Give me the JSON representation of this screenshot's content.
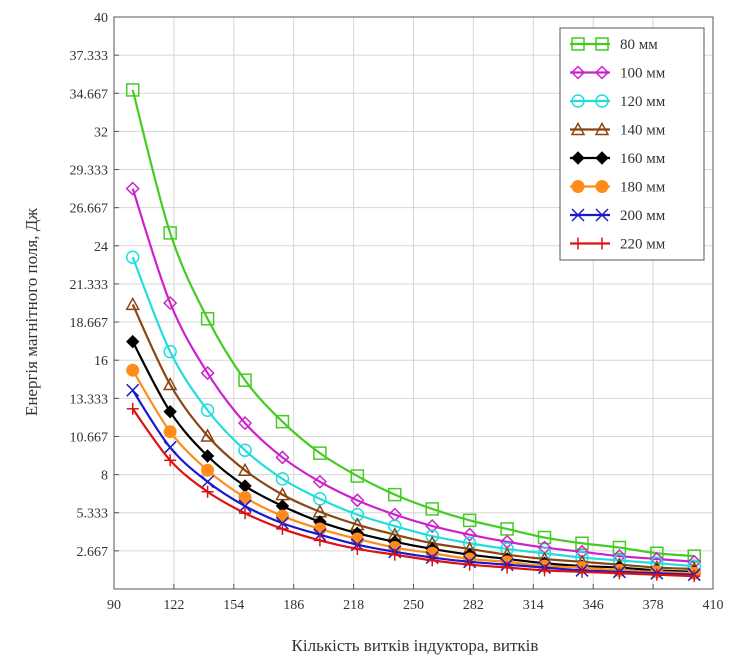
{
  "chart_data": {
    "type": "line",
    "xlabel": "Кількість витків індуктора, витків",
    "ylabel": "Енергія магнітного поля, Дж",
    "xlim": [
      90,
      410
    ],
    "ylim": [
      0,
      40
    ],
    "grid": true,
    "legend_position": "top-right",
    "x_ticks": [
      90,
      122,
      154,
      186,
      218,
      250,
      282,
      314,
      346,
      378,
      410
    ],
    "x_tick_labels": [
      "90",
      "122",
      "154",
      "186",
      "218",
      "250",
      "282",
      "314",
      "346",
      "378",
      "410"
    ],
    "y_ticks": [
      2.667,
      5.333,
      8,
      10.667,
      13.333,
      16,
      18.667,
      21.333,
      24,
      26.667,
      29.333,
      32,
      34.667,
      37.333,
      40
    ],
    "y_tick_labels": [
      "2.667",
      "5.333",
      "8",
      "10.667",
      "13.333",
      "16",
      "18.667",
      "21.333",
      "24",
      "26.667",
      "29.333",
      "32",
      "34.667",
      "37.333",
      "40"
    ],
    "x": [
      100,
      120,
      140,
      160,
      180,
      200,
      220,
      240,
      260,
      280,
      300,
      320,
      340,
      360,
      380,
      400
    ],
    "series": [
      {
        "name": "80 мм",
        "color": "#44cc22",
        "marker": "square",
        "values": [
          34.9,
          24.9,
          18.9,
          14.6,
          11.7,
          9.5,
          7.9,
          6.6,
          5.6,
          4.8,
          4.2,
          3.6,
          3.2,
          2.9,
          2.5,
          2.3
        ]
      },
      {
        "name": "100 мм",
        "color": "#cc22cc",
        "marker": "diamond",
        "values": [
          28.0,
          20.0,
          15.1,
          11.6,
          9.2,
          7.5,
          6.2,
          5.2,
          4.4,
          3.8,
          3.3,
          2.9,
          2.6,
          2.3,
          2.1,
          1.9
        ]
      },
      {
        "name": "120 мм",
        "color": "#22dddd",
        "marker": "circle",
        "values": [
          23.2,
          16.6,
          12.5,
          9.7,
          7.7,
          6.3,
          5.2,
          4.4,
          3.7,
          3.2,
          2.8,
          2.5,
          2.2,
          2.0,
          1.8,
          1.6
        ]
      },
      {
        "name": "140 мм",
        "color": "#8b4513",
        "marker": "triangle",
        "values": [
          19.9,
          14.3,
          10.7,
          8.3,
          6.6,
          5.4,
          4.5,
          3.8,
          3.2,
          2.8,
          2.4,
          2.1,
          1.9,
          1.7,
          1.5,
          1.4
        ]
      },
      {
        "name": "160 мм",
        "color": "#000000",
        "marker": "filled-diamond",
        "values": [
          17.3,
          12.4,
          9.3,
          7.2,
          5.8,
          4.7,
          3.9,
          3.3,
          2.8,
          2.4,
          2.1,
          1.8,
          1.6,
          1.5,
          1.3,
          1.2
        ]
      },
      {
        "name": "180 мм",
        "color": "#ff8c1a",
        "marker": "filled-circle",
        "values": [
          15.3,
          11.0,
          8.3,
          6.4,
          5.1,
          4.2,
          3.5,
          2.9,
          2.5,
          2.1,
          1.9,
          1.6,
          1.5,
          1.3,
          1.2,
          1.1
        ]
      },
      {
        "name": "200 мм",
        "color": "#1a1acc",
        "marker": "x",
        "values": [
          13.9,
          9.9,
          7.5,
          5.8,
          4.6,
          3.8,
          3.1,
          2.6,
          2.2,
          1.9,
          1.7,
          1.5,
          1.3,
          1.2,
          1.1,
          1.0
        ]
      },
      {
        "name": "220 мм",
        "color": "#dd1111",
        "marker": "plus",
        "values": [
          12.6,
          9.0,
          6.8,
          5.3,
          4.2,
          3.4,
          2.8,
          2.4,
          2.0,
          1.7,
          1.5,
          1.3,
          1.2,
          1.1,
          1.0,
          0.9
        ]
      }
    ]
  }
}
